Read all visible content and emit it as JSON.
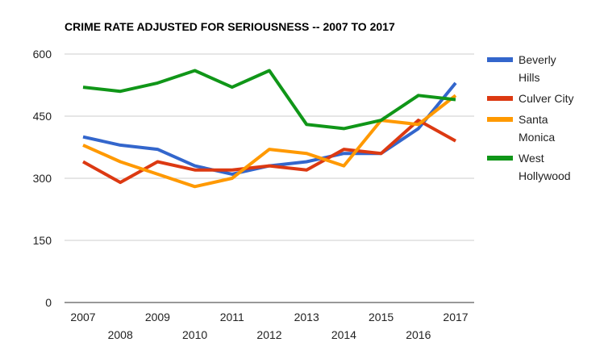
{
  "chart_data": {
    "type": "line",
    "title": "CRIME RATE ADJUSTED FOR SERIOUSNESS -- 2007 TO 2017",
    "xlabel": "",
    "ylabel": "",
    "categories": [
      "2007",
      "2008",
      "2009",
      "2010",
      "2011",
      "2012",
      "2013",
      "2014",
      "2015",
      "2016",
      "2017"
    ],
    "ylim": [
      0,
      600
    ],
    "yticks": [
      0,
      150,
      300,
      450,
      600
    ],
    "grid": true,
    "legend_position": "right",
    "series": [
      {
        "name": "Beverly Hills",
        "color": "#3366cc",
        "values": [
          400,
          380,
          370,
          330,
          310,
          330,
          340,
          360,
          360,
          420,
          530
        ]
      },
      {
        "name": "Culver City",
        "color": "#dc3912",
        "values": [
          340,
          290,
          340,
          320,
          320,
          330,
          320,
          370,
          360,
          440,
          390
        ]
      },
      {
        "name": "Santa Monica",
        "color": "#ff9900",
        "values": [
          380,
          340,
          310,
          280,
          300,
          370,
          360,
          330,
          440,
          430,
          500
        ]
      },
      {
        "name": "West Hollywood",
        "color": "#109618",
        "values": [
          520,
          510,
          530,
          560,
          520,
          560,
          430,
          420,
          440,
          500,
          490
        ]
      }
    ]
  }
}
